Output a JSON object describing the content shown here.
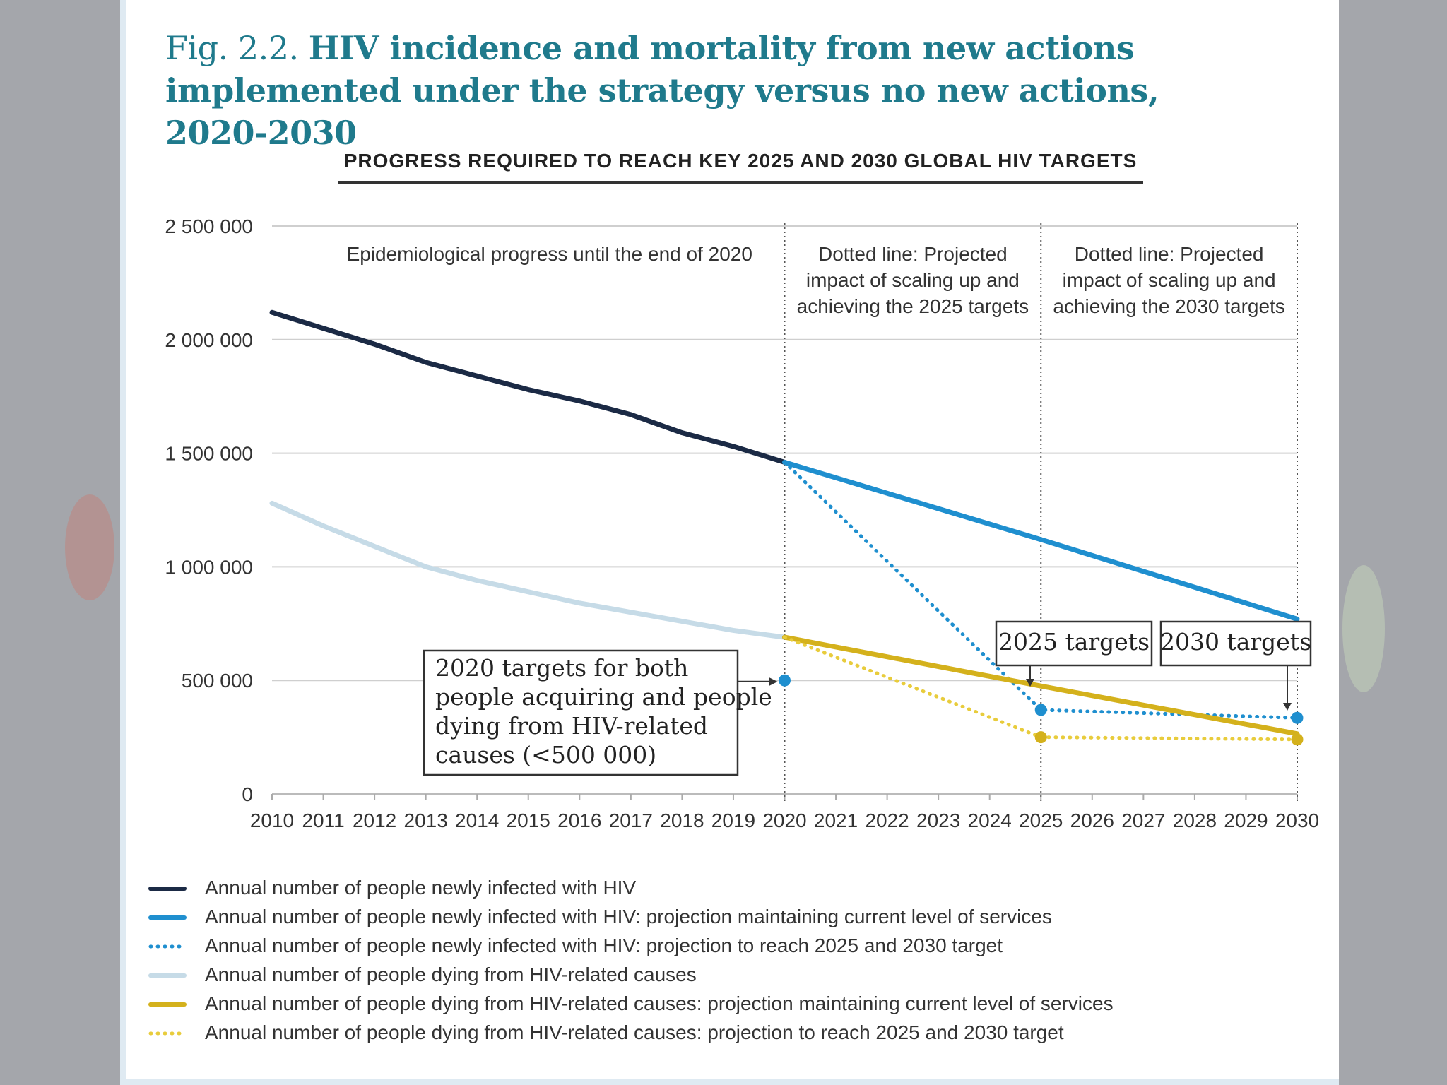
{
  "figure": {
    "number": "Fig. 2.2.",
    "title": "HIV incidence and mortality from new actions implemented under the strategy versus no new actions, 2020-2030"
  },
  "chart_data": {
    "type": "line",
    "title": "PROGRESS REQUIRED TO REACH KEY 2025 AND 2030 GLOBAL HIV TARGETS",
    "xlabel": "",
    "ylabel": "",
    "xlim": [
      2010,
      2030
    ],
    "ylim": [
      0,
      2500000
    ],
    "grid": true,
    "x_ticks": [
      "2010",
      "2011",
      "2012",
      "2013",
      "2014",
      "2015",
      "2016",
      "2017",
      "2018",
      "2019",
      "2020",
      "2021",
      "2022",
      "2023",
      "2024",
      "2025",
      "2026",
      "2027",
      "2028",
      "2029",
      "2030"
    ],
    "y_ticks": [
      {
        "value": 0,
        "label": "0"
      },
      {
        "value": 500000,
        "label": "500 000"
      },
      {
        "value": 1000000,
        "label": "1 000 000"
      },
      {
        "value": 1500000,
        "label": "1 500 000"
      },
      {
        "value": 2000000,
        "label": "2 000 000"
      },
      {
        "value": 2500000,
        "label": "2 500 000"
      }
    ],
    "series": [
      {
        "name": "Annual number of people newly infected with HIV",
        "color": "#1b2a45",
        "style": "solid",
        "x": [
          2010,
          2011,
          2012,
          2013,
          2014,
          2015,
          2016,
          2017,
          2018,
          2019,
          2020
        ],
        "y": [
          2120000,
          2050000,
          1980000,
          1900000,
          1840000,
          1780000,
          1730000,
          1670000,
          1590000,
          1530000,
          1460000
        ]
      },
      {
        "name": "Annual number of people newly infected with HIV: projection maintaining current level of services",
        "color": "#1f8fcf",
        "style": "solid",
        "x": [
          2020,
          2025,
          2030
        ],
        "y": [
          1460000,
          1120000,
          770000
        ]
      },
      {
        "name": "Annual number of people newly infected with HIV: projection to reach 2025 and 2030 target",
        "color": "#1f8fcf",
        "style": "dotted",
        "x": [
          2020,
          2025,
          2030
        ],
        "y": [
          1460000,
          370000,
          335000
        ]
      },
      {
        "name": "Annual number of people dying from HIV-related causes",
        "color": "#c6dbe7",
        "style": "solid",
        "x": [
          2010,
          2011,
          2012,
          2013,
          2014,
          2015,
          2016,
          2017,
          2018,
          2019,
          2020
        ],
        "y": [
          1280000,
          1180000,
          1090000,
          1000000,
          940000,
          890000,
          840000,
          800000,
          760000,
          720000,
          690000
        ]
      },
      {
        "name": "Annual number of people dying from HIV-related causes: projection maintaining current level of services",
        "color": "#d4b11c",
        "style": "solid",
        "x": [
          2020,
          2025,
          2030
        ],
        "y": [
          690000,
          475000,
          265000
        ]
      },
      {
        "name": "Annual number of people dying from HIV-related causes: projection to reach 2025 and 2030 target",
        "color": "#e8cc3c",
        "style": "dotted",
        "x": [
          2020,
          2025,
          2030
        ],
        "y": [
          690000,
          250000,
          240000
        ]
      }
    ],
    "markers": [
      {
        "x": 2020,
        "y": 500000,
        "color": "#1f8fcf"
      },
      {
        "x": 2025,
        "y": 370000,
        "color": "#1f8fcf"
      },
      {
        "x": 2030,
        "y": 335000,
        "color": "#1f8fcf"
      },
      {
        "x": 2025,
        "y": 250000,
        "color": "#d4b11c"
      },
      {
        "x": 2030,
        "y": 240000,
        "color": "#d4b11c"
      }
    ],
    "dividers": [
      2020,
      2025,
      2030
    ],
    "region_labels": [
      {
        "lines": [
          "Epidemiological progress until the end of 2020"
        ]
      },
      {
        "lines": [
          "Dotted line: Projected",
          "impact of scaling up and",
          "achieving the 2025 targets"
        ]
      },
      {
        "lines": [
          "Dotted line: Projected",
          "impact of scaling up and",
          "achieving the 2030 targets"
        ]
      }
    ],
    "annotations": [
      {
        "lines": [
          "2020 targets for both",
          "people acquiring and people",
          "dying from HIV-related",
          "causes (<500 000)"
        ],
        "points_to_x": 2020
      },
      {
        "lines": [
          "2025 targets"
        ],
        "points_to_x": 2025
      },
      {
        "lines": [
          "2030 targets"
        ],
        "points_to_x": 2030
      }
    ],
    "legend_position": "bottom"
  }
}
